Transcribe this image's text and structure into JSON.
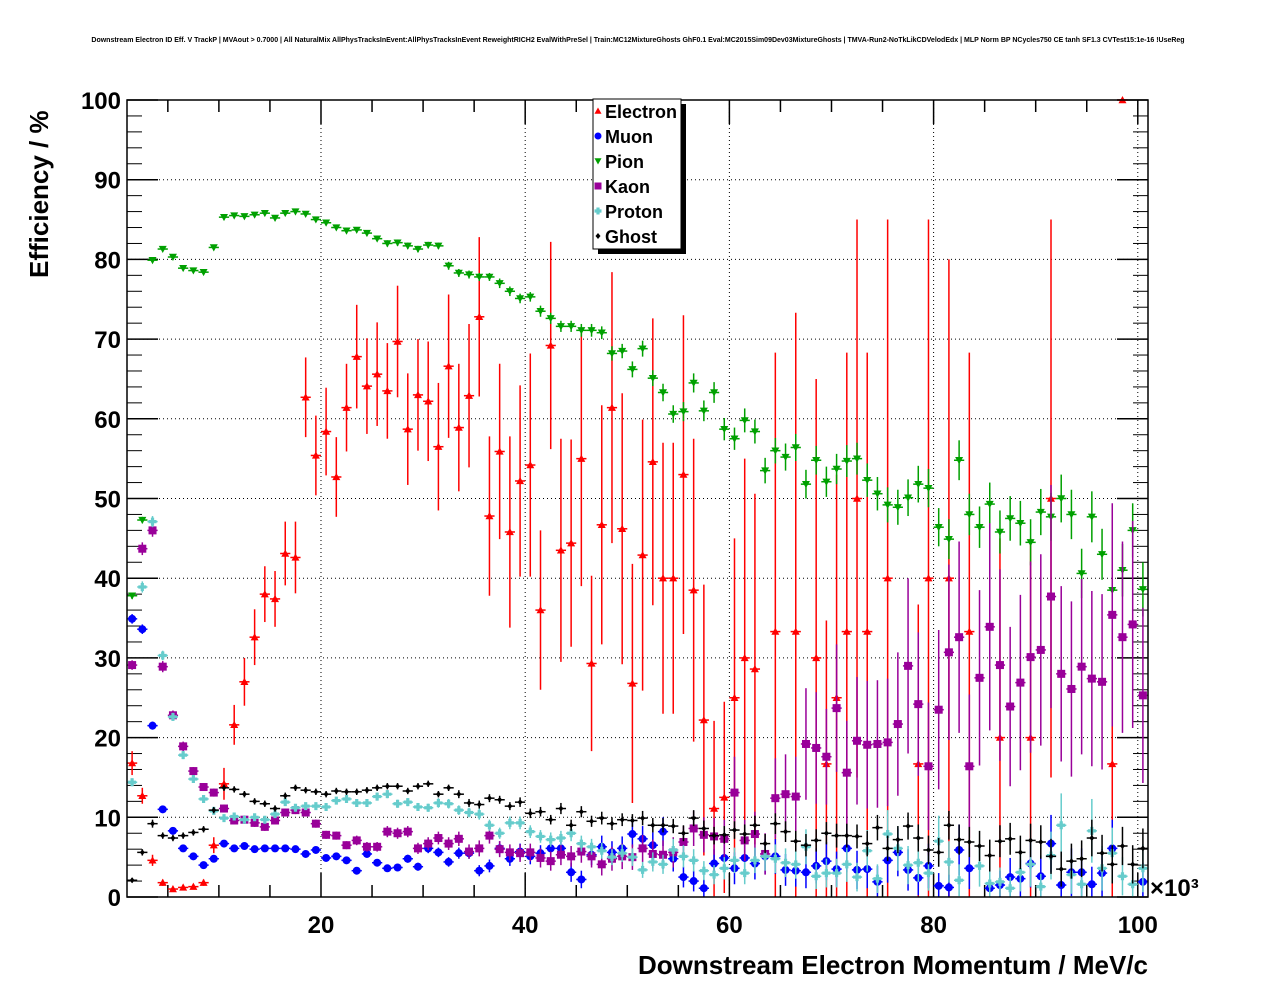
{
  "chart_data": {
    "type": "scatter",
    "title": "Downstream Electron ID Eff. V TrackP | MVAout > 0.7000 | All NaturalMix AllPhysTracksInEvent:AllPhysTracksInEvent ReweightRICH2 EvalWithPreSel | Train:MC12MixtureGhosts GhF0.1 Eval:MC2015Sim09Dev03MixtureGhosts | TMVA-Run2-NoTkLikCDVelodEdx | MLP Norm BP NCycles750 CE tanh SF1.3 CVTest15:1e-16 !UseReg",
    "xlabel": "Downstream Electron Momentum / MeV/c",
    "ylabel": "Efficiency / %",
    "x_multiplier": "×10³",
    "xlim": [
      1,
      101
    ],
    "ylim": [
      0,
      100
    ],
    "xticks": [
      "20",
      "40",
      "60",
      "80",
      "100"
    ],
    "yticks": [
      "0",
      "10",
      "20",
      "30",
      "40",
      "50",
      "60",
      "70",
      "80",
      "90",
      "100"
    ],
    "grid": true,
    "legend_position": "top-center",
    "bins": {
      "start": 1,
      "width": 1,
      "count": 100
    },
    "series": [
      {
        "name": "Electron",
        "color": "#ff0000",
        "marker": "triangle-up",
        "values": [
          16.8,
          12.7,
          4.6,
          1.8,
          1.0,
          1.2,
          1.3,
          1.8,
          6.5,
          14.2,
          21.6,
          27.0,
          32.6,
          38.0,
          37.4,
          43.1,
          42.6,
          62.7,
          55.4,
          58.4,
          52.7,
          61.4,
          67.8,
          64.1,
          65.6,
          63.5,
          69.7,
          58.7,
          63.0,
          62.2,
          56.5,
          66.6,
          58.9,
          62.9,
          72.8,
          47.8,
          55.9,
          45.8,
          52.2,
          54.2,
          36.0,
          69.2,
          43.5,
          44.4,
          55.0,
          29.3,
          46.7,
          61.4,
          46.2,
          26.8,
          42.9,
          54.6,
          40.0,
          40.0,
          53.0,
          38.5,
          22.2,
          11.1,
          12.5,
          25.0,
          30.0,
          28.6,
          null,
          33.3,
          null,
          33.3,
          null,
          30.0,
          16.7,
          25.0,
          33.3,
          50.0,
          33.3,
          null,
          40.0,
          null,
          null,
          16.7,
          40.0,
          null,
          40.0,
          null,
          33.3,
          null,
          null,
          20.0,
          null,
          null,
          20.0,
          null,
          50.0,
          null,
          null,
          null,
          null,
          null,
          16.7,
          100.0,
          null,
          null
        ],
        "errors": [
          1.5,
          1,
          0.7,
          0.4,
          0.3,
          0.3,
          0.3,
          0.4,
          1,
          2,
          2.5,
          3,
          3.5,
          3.5,
          3.5,
          4,
          4.5,
          5,
          5,
          5.5,
          5,
          5.5,
          6.5,
          6,
          6.5,
          6,
          7,
          7,
          7,
          7.5,
          8,
          9,
          8,
          9,
          10,
          10,
          11,
          12,
          12,
          14,
          10,
          13,
          14,
          13,
          16,
          11,
          15,
          17,
          17,
          15,
          17,
          18,
          17,
          17,
          20,
          19,
          17,
          11,
          12,
          20,
          25,
          22,
          0,
          35,
          0,
          40,
          0,
          35,
          18,
          28,
          35,
          35,
          35,
          0,
          45,
          0,
          0,
          20,
          45,
          0,
          40,
          0,
          35,
          0,
          0,
          25,
          0,
          0,
          25,
          0,
          35,
          0,
          0,
          0,
          0,
          0,
          17,
          0,
          0,
          0
        ]
      },
      {
        "name": "Muon",
        "color": "#0000ff",
        "marker": "circle",
        "values": [
          34.9,
          33.6,
          21.5,
          11.0,
          8.3,
          6.1,
          5.1,
          4.0,
          4.8,
          6.7,
          6.1,
          6.4,
          6.0,
          6.1,
          6.1,
          6.1,
          6.0,
          5.4,
          5.9,
          4.9,
          5.1,
          4.6,
          3.3,
          5.4,
          4.3,
          3.6,
          3.7,
          4.8,
          3.8,
          6.1,
          5.6,
          4.4,
          5.5,
          5.5,
          3.3,
          3.9,
          6.1,
          4.8,
          5.7,
          5.1,
          5.5,
          6.1,
          6.1,
          3.1,
          2.2,
          5.3,
          6.3,
          5.6,
          6.1,
          7.9,
          7.3,
          6.5,
          8.2,
          4.8,
          2.5,
          2.0,
          1.1,
          4.2,
          4.9,
          3.6,
          4.9,
          4.2,
          5.1,
          5.1,
          3.4,
          3.3,
          3.1,
          3.9,
          4.5,
          3.5,
          6.1,
          3.4,
          3.5,
          1.9,
          4.6,
          5.6,
          3.4,
          2.4,
          3.9,
          1.4,
          1.2,
          5.9,
          3.6,
          null,
          1.1,
          1.5,
          2.5,
          2.3,
          4.2,
          2.6,
          6.7,
          1.5,
          3.1,
          3.1,
          1.6,
          3.0,
          6.1,
          null,
          null,
          1.9
        ],
        "errors": [
          0.6,
          0.6,
          0.5,
          0.4,
          0.4,
          0.4,
          0.4,
          0.4,
          0.4,
          0.4,
          0.3,
          0.3,
          0.3,
          0.3,
          0.3,
          0.3,
          0.3,
          0.3,
          0.3,
          0.3,
          0.3,
          0.3,
          0.3,
          0.4,
          0.4,
          0.4,
          0.4,
          0.5,
          0.5,
          0.6,
          0.6,
          0.6,
          0.7,
          0.7,
          0.7,
          0.8,
          0.9,
          0.9,
          1,
          1,
          1,
          1.1,
          1.2,
          1.2,
          1.1,
          1.3,
          1.4,
          1.4,
          1.5,
          1.6,
          1.6,
          1.6,
          1.8,
          1.6,
          1.3,
          1.3,
          1.1,
          1.8,
          2,
          2,
          2,
          2,
          2.2,
          2.2,
          2,
          2,
          2,
          2.2,
          2.4,
          2.2,
          3,
          2.4,
          2.4,
          2,
          2.8,
          3,
          2.6,
          2.2,
          2.8,
          1.6,
          1.6,
          3.2,
          2.6,
          0,
          1.6,
          1.8,
          2.4,
          2.4,
          3,
          2.6,
          3.6,
          2,
          3,
          3,
          2.2,
          3,
          3.6,
          0,
          0,
          2.4
        ]
      },
      {
        "name": "Pion",
        "color": "#00a000",
        "marker": "triangle-down",
        "values": [
          37.8,
          47.3,
          79.9,
          81.3,
          80.3,
          78.9,
          78.6,
          78.4,
          81.5,
          85.3,
          85.5,
          85.4,
          85.6,
          85.8,
          85.2,
          85.8,
          86.0,
          85.7,
          85.0,
          84.6,
          84.0,
          83.6,
          83.7,
          83.3,
          82.6,
          82.0,
          82.1,
          81.7,
          81.3,
          81.8,
          81.7,
          79.2,
          78.3,
          78.1,
          77.8,
          77.8,
          77.0,
          76.0,
          75.1,
          75.3,
          73.5,
          72.6,
          71.6,
          71.6,
          71.1,
          71.1,
          70.8,
          68.2,
          68.5,
          66.2,
          68.8,
          65.1,
          63.3,
          60.6,
          60.9,
          64.5,
          61.0,
          63.3,
          58.7,
          57.5,
          59.8,
          58.4,
          53.5,
          56.0,
          55.2,
          56.4,
          51.8,
          54.8,
          52.1,
          53.7,
          54.7,
          55.0,
          52.3,
          50.6,
          49.2,
          48.9,
          50.1,
          51.8,
          51.3,
          46.4,
          44.9,
          54.8,
          48.0,
          46.4,
          49.3,
          45.8,
          47.5,
          46.9,
          44.5,
          48.3,
          47.7,
          50.0,
          48.0,
          40.6,
          47.7,
          43.0,
          38.5,
          41.0,
          46.0,
          38.6
        ],
        "errors": [
          0.4,
          0.4,
          0.3,
          0.3,
          0.3,
          0.3,
          0.3,
          0.3,
          0.3,
          0.3,
          0.3,
          0.3,
          0.3,
          0.3,
          0.3,
          0.3,
          0.3,
          0.3,
          0.3,
          0.3,
          0.3,
          0.3,
          0.3,
          0.3,
          0.3,
          0.4,
          0.4,
          0.4,
          0.4,
          0.4,
          0.4,
          0.5,
          0.5,
          0.5,
          0.5,
          0.5,
          0.6,
          0.6,
          0.6,
          0.6,
          0.7,
          0.7,
          0.7,
          0.7,
          0.8,
          0.8,
          0.8,
          0.9,
          0.9,
          1,
          1,
          1,
          1.1,
          1.1,
          1.2,
          1.2,
          1.3,
          1.3,
          1.4,
          1.4,
          1.5,
          1.5,
          1.6,
          1.6,
          1.7,
          1.7,
          1.8,
          1.8,
          1.9,
          1.9,
          2,
          2,
          2.1,
          2.1,
          2.2,
          2.2,
          2.3,
          2.3,
          2.4,
          2.4,
          2.5,
          2.5,
          2.6,
          2.6,
          2.7,
          2.7,
          2.8,
          2.8,
          2.9,
          2.9,
          3,
          3,
          3.1,
          3.1,
          3.2,
          3.2,
          3.3,
          3.3,
          3.4,
          3.4
        ]
      },
      {
        "name": "Kaon",
        "color": "#990099",
        "marker": "square",
        "values": [
          29.1,
          43.7,
          46.0,
          28.9,
          22.8,
          18.9,
          15.8,
          13.8,
          13.1,
          11.1,
          9.6,
          9.7,
          9.3,
          8.8,
          9.6,
          10.6,
          10.9,
          10.6,
          9.2,
          7.8,
          7.7,
          6.5,
          7.1,
          6.3,
          6.3,
          8.2,
          8.0,
          8.2,
          6.1,
          6.7,
          7.4,
          6.7,
          7.3,
          5.7,
          6.1,
          7.7,
          6.0,
          5.6,
          5.5,
          5.6,
          4.9,
          4.5,
          5.3,
          5.1,
          5.7,
          5.1,
          4.1,
          4.8,
          5.1,
          5.0,
          6.1,
          5.4,
          5.3,
          5.6,
          6.9,
          8.6,
          7.8,
          7.6,
          7.3,
          13.1,
          7.1,
          7.9,
          5.4,
          12.4,
          12.9,
          12.6,
          19.2,
          18.7,
          17.6,
          23.7,
          15.6,
          19.6,
          19.1,
          19.2,
          19.4,
          21.7,
          29.0,
          24.2,
          16.4,
          23.5,
          30.7,
          32.6,
          16.4,
          27.5,
          33.9,
          29.1,
          23.9,
          26.9,
          30.1,
          31.0,
          37.7,
          28.0,
          26.1,
          28.9,
          27.4,
          27.0,
          35.4,
          32.6,
          34.2,
          25.3
        ],
        "errors": [
          0.6,
          0.8,
          0.8,
          0.7,
          0.6,
          0.6,
          0.5,
          0.5,
          0.5,
          0.5,
          0.5,
          0.5,
          0.5,
          0.5,
          0.5,
          0.5,
          0.5,
          0.5,
          0.5,
          0.5,
          0.5,
          0.5,
          0.6,
          0.6,
          0.6,
          0.7,
          0.7,
          0.7,
          0.7,
          0.8,
          0.8,
          0.8,
          0.9,
          0.9,
          1,
          1,
          1,
          1,
          1.1,
          1.1,
          1.2,
          1.2,
          1.3,
          1.3,
          1.4,
          1.4,
          1.4,
          1.5,
          1.6,
          1.6,
          1.7,
          1.8,
          1.8,
          1.9,
          2,
          2.2,
          2.2,
          2.3,
          2.4,
          4.5,
          2.6,
          2.8,
          2.6,
          5,
          5,
          5,
          7,
          7,
          6,
          8,
          6.5,
          8,
          8,
          8,
          8,
          9,
          11,
          9,
          8,
          10,
          11,
          12,
          9,
          11,
          13,
          12,
          10,
          11,
          12,
          12,
          14,
          11,
          11,
          11,
          11,
          11,
          14,
          12,
          13,
          11
        ]
      },
      {
        "name": "Proton",
        "color": "#66cccc",
        "marker": "cross",
        "values": [
          14.4,
          38.9,
          47.1,
          30.3,
          22.6,
          17.8,
          14.8,
          12.3,
          10.8,
          9.9,
          10.1,
          9.7,
          10.0,
          9.7,
          10.4,
          11.9,
          11.2,
          11.4,
          11.4,
          11.3,
          12.1,
          12.3,
          11.8,
          11.8,
          12.6,
          12.9,
          11.7,
          11.9,
          11.3,
          11.2,
          11.8,
          11.7,
          10.9,
          10.6,
          10.4,
          9.0,
          8.0,
          9.3,
          9.3,
          8.2,
          7.6,
          7.2,
          7.4,
          8.0,
          6.7,
          6.3,
          5.8,
          5.0,
          5.5,
          5.0,
          3.4,
          4.4,
          4.1,
          5.9,
          5.1,
          4.6,
          3.3,
          2.8,
          3.6,
          4.6,
          3.0,
          4.6,
          5.1,
          4.8,
          4.3,
          4.1,
          6.3,
          2.6,
          3.0,
          3.0,
          4.1,
          2.5,
          5.8,
          2.3,
          7.9,
          6.1,
          4.0,
          4.3,
          3.0,
          7.0,
          4.4,
          2.1,
          null,
          3.9,
          1.7,
          1.9,
          1.1,
          3.1,
          4.1,
          1.3,
          5.2,
          9.0,
          2.8,
          1.6,
          8.3,
          3.6,
          5.5,
          2.6,
          1.6,
          3.6
        ],
        "errors": [
          0.5,
          0.7,
          0.7,
          0.6,
          0.5,
          0.5,
          0.4,
          0.4,
          0.4,
          0.4,
          0.4,
          0.4,
          0.4,
          0.4,
          0.4,
          0.4,
          0.4,
          0.4,
          0.4,
          0.4,
          0.4,
          0.4,
          0.4,
          0.4,
          0.5,
          0.5,
          0.5,
          0.5,
          0.5,
          0.5,
          0.6,
          0.6,
          0.6,
          0.6,
          0.7,
          0.7,
          0.7,
          0.8,
          0.8,
          0.8,
          0.8,
          0.9,
          0.9,
          1,
          1,
          1,
          1,
          1,
          1.1,
          1.1,
          1,
          1.2,
          1.2,
          1.4,
          1.4,
          1.4,
          1.2,
          1.2,
          1.4,
          1.6,
          1.4,
          1.6,
          1.8,
          1.8,
          1.8,
          1.8,
          2.2,
          1.6,
          1.8,
          1.8,
          2.2,
          1.8,
          2.6,
          1.8,
          3,
          2.8,
          2.4,
          2.4,
          2.2,
          3.2,
          2.6,
          2,
          0,
          2.6,
          1.8,
          1.8,
          1.4,
          2.4,
          2.8,
          1.6,
          3,
          4,
          2.4,
          1.8,
          4,
          2.8,
          3.2,
          2.4,
          2,
          3
        ]
      },
      {
        "name": "Ghost",
        "color": "#000000",
        "marker": "diamond",
        "values": [
          2.1,
          5.6,
          9.2,
          7.7,
          7.4,
          7.7,
          8.1,
          8.5,
          10.9,
          13.7,
          13.5,
          12.9,
          12.0,
          11.7,
          11.1,
          12.7,
          13.7,
          13.4,
          13.2,
          12.9,
          13.3,
          13.2,
          13.2,
          13.4,
          13.7,
          13.9,
          13.9,
          13.3,
          13.9,
          14.2,
          12.9,
          13.7,
          12.9,
          11.8,
          11.6,
          12.4,
          12.2,
          11.4,
          11.9,
          10.5,
          10.7,
          9.7,
          11.1,
          9.0,
          10.7,
          9.5,
          9.9,
          9.2,
          9.7,
          9.6,
          9.9,
          9.0,
          9.0,
          8.9,
          8.0,
          9.9,
          8.6,
          7.7,
          7.8,
          8.4,
          7.9,
          9.0,
          6.7,
          9.2,
          8.2,
          7.0,
          6.5,
          7.1,
          8.0,
          7.7,
          7.7,
          7.6,
          6.7,
          8.7,
          6.1,
          7.2,
          8.9,
          7.4,
          5.9,
          5.6,
          9.0,
          7.2,
          6.9,
          6.4,
          5.2,
          7.0,
          7.3,
          5.6,
          7.1,
          6.9,
          5.1,
          3.5,
          4.5,
          4.8,
          7.4,
          5.5,
          4.1,
          6.4,
          4.1,
          6.1
        ],
        "errors": [
          0.3,
          0.4,
          0.5,
          0.4,
          0.4,
          0.4,
          0.4,
          0.4,
          0.4,
          0.4,
          0.4,
          0.4,
          0.4,
          0.4,
          0.4,
          0.4,
          0.4,
          0.4,
          0.4,
          0.4,
          0.4,
          0.4,
          0.4,
          0.4,
          0.4,
          0.4,
          0.4,
          0.4,
          0.4,
          0.4,
          0.4,
          0.4,
          0.5,
          0.5,
          0.5,
          0.5,
          0.5,
          0.5,
          0.6,
          0.6,
          0.6,
          0.6,
          0.7,
          0.7,
          0.7,
          0.7,
          0.8,
          0.8,
          0.8,
          0.8,
          0.9,
          0.9,
          0.9,
          0.9,
          1,
          1,
          1,
          1.1,
          1.1,
          1.1,
          1.2,
          1.2,
          1.2,
          1.3,
          1.3,
          1.3,
          1.4,
          1.4,
          1.4,
          1.5,
          1.5,
          1.5,
          1.6,
          1.6,
          1.6,
          1.7,
          1.7,
          1.7,
          1.8,
          1.8,
          1.8,
          1.9,
          1.9,
          1.9,
          2,
          2,
          2,
          2.1,
          2.1,
          2.1,
          2.2,
          2.2,
          2.2,
          2.3,
          2.3,
          2.3,
          2.4,
          2.4,
          2.4,
          2.5
        ]
      }
    ]
  }
}
